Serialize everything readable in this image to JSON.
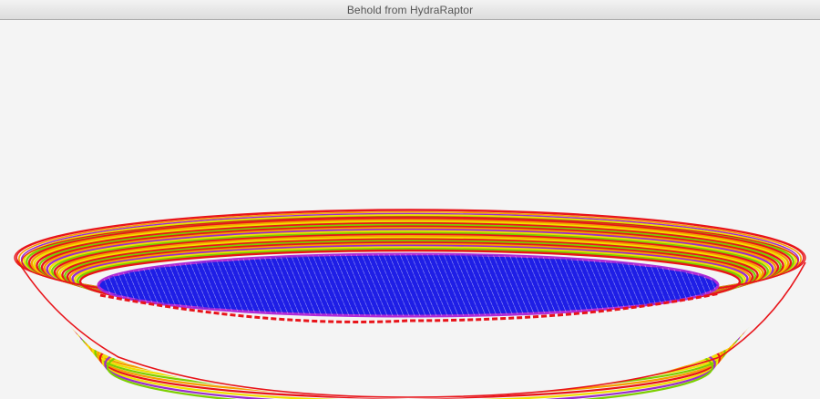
{
  "window": {
    "title": "Behold from HydraRaptor"
  },
  "viewport": {
    "background_color": "#f4f4f4",
    "model": "bowl-toolpath-preview",
    "palette": {
      "outer_perimeter": "#e8141a",
      "perimeter_orange": "#f5a000",
      "perimeter_yellow": "#f0e000",
      "perimeter_green": "#7ccf00",
      "perimeter_purple": "#9a2bd0",
      "infill_base": "#1e1ee6",
      "infill_lines": "#ffffff",
      "infill_rim": "#b02ad6"
    }
  }
}
